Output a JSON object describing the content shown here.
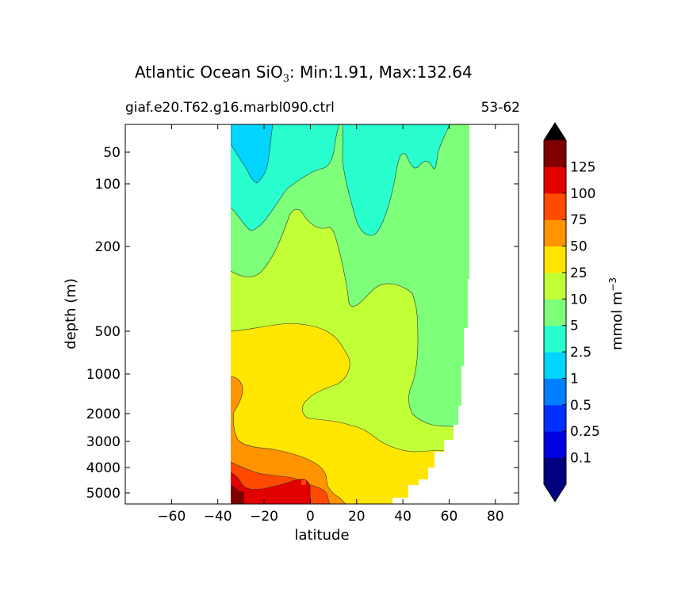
{
  "chart_data": {
    "type": "contourf",
    "title": {
      "prefix": "Atlantic Ocean SiO",
      "subscript": "3",
      "suffix": ": Min:1.91, Max:132.64"
    },
    "subtitle_left": "giaf.e20.T62.g16.marbl090.ctrl",
    "subtitle_right": "53-62",
    "xlabel": "latitude",
    "ylabel": "depth (m)",
    "xlim": [
      -80,
      90
    ],
    "xticks": [
      -60,
      -40,
      -20,
      0,
      20,
      40,
      60,
      80
    ],
    "xtick_labels": [
      "−60",
      "−40",
      "−20",
      "0",
      "20",
      "40",
      "60",
      "80"
    ],
    "y_scale": "nonlinear (depth axis, inverted)",
    "yticks": [
      50,
      100,
      200,
      500,
      1000,
      2000,
      3000,
      4000,
      5000
    ],
    "ytick_labels": [
      "50",
      "100",
      "200",
      "500",
      "1000",
      "2000",
      "3000",
      "4000",
      "5000"
    ],
    "colorbar": {
      "label": "mmol m",
      "label_exp": "−3",
      "extend": "both",
      "levels": [
        0.1,
        0.25,
        0.5,
        1,
        2.5,
        5,
        10,
        25,
        50,
        75,
        100,
        125
      ],
      "level_labels": [
        "0.1",
        "0.25",
        "0.5",
        "1",
        "2.5",
        "5",
        "10",
        "25",
        "50",
        "75",
        "100",
        "125"
      ],
      "colors": [
        "#000080",
        "#0000e0",
        "#0030ff",
        "#0080ff",
        "#00d4ff",
        "#29ffce",
        "#7dff7a",
        "#c1ff36",
        "#ffe600",
        "#ff9400",
        "#ff4a00",
        "#e30000",
        "#800000"
      ],
      "under_color": "#000080",
      "over_color": "#000000"
    },
    "section_extent": {
      "lat_min": -34,
      "lat_max": 69,
      "depth_min": 5,
      "depth_max": 5500
    },
    "contour_regions": [
      {
        "name": "silicate-2.5-5",
        "band": "2.5-5",
        "color": "#29ffce"
      },
      {
        "name": "silicate-1-2.5",
        "band": "1-2.5",
        "color": "#00d4ff"
      },
      {
        "name": "silicate-5-10",
        "band": "5-10",
        "color": "#7dff7a"
      },
      {
        "name": "silicate-10-25",
        "band": "10-25",
        "color": "#c1ff36"
      },
      {
        "name": "silicate-25-50",
        "band": "25-50",
        "color": "#ffe600"
      },
      {
        "name": "silicate-50-75",
        "band": "50-75",
        "color": "#ff9400"
      },
      {
        "name": "silicate-75-100",
        "band": "75-100",
        "color": "#ff4a00"
      },
      {
        "name": "silicate-100-125",
        "band": "100-125",
        "color": "#e30000"
      },
      {
        "name": "silicate-over-125",
        "band": ">125",
        "color": "#800000"
      }
    ]
  }
}
